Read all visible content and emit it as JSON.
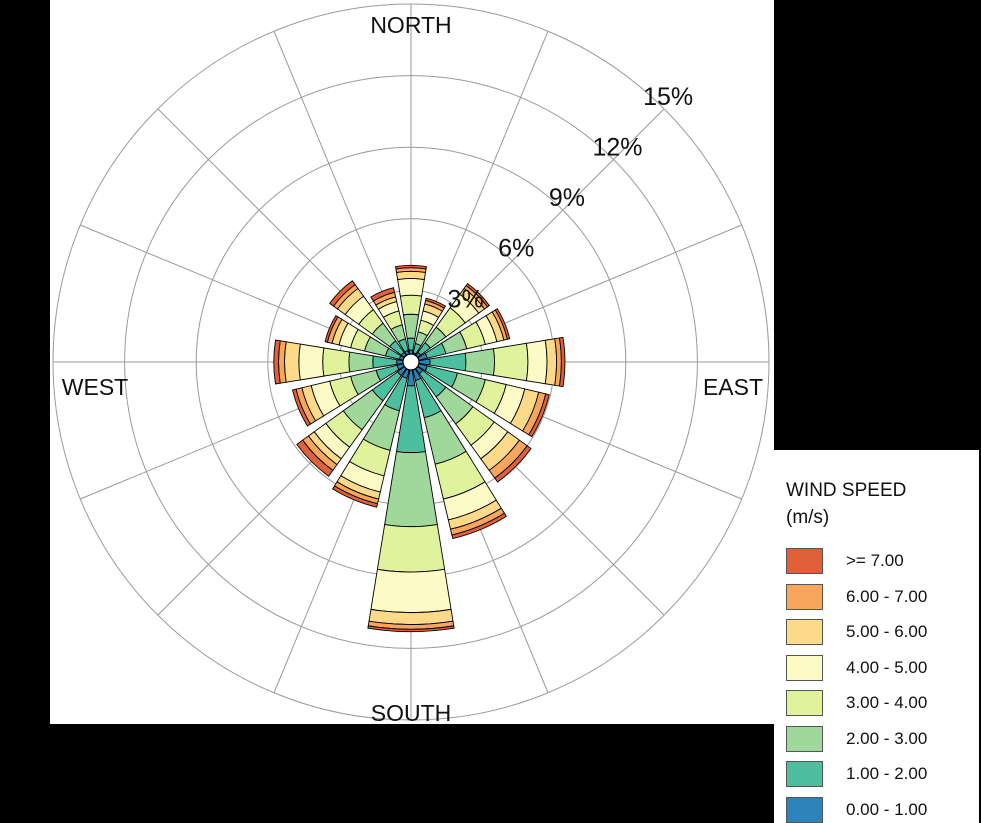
{
  "chart_data": {
    "type": "wind-rose",
    "directions": [
      "N",
      "NNE",
      "NE",
      "ENE",
      "E",
      "ESE",
      "SE",
      "SSE",
      "S",
      "SSW",
      "SW",
      "WSW",
      "W",
      "WNW",
      "NW",
      "NNW"
    ],
    "compass_labels": {
      "north": "NORTH",
      "east": "EAST",
      "south": "SOUTH",
      "west": "WEST"
    },
    "rings": [
      3,
      6,
      9,
      12,
      15
    ],
    "ring_labels": [
      "3%",
      "6%",
      "9%",
      "12%",
      "15%"
    ],
    "max_percent": 15,
    "legend": {
      "title_line1": "WIND SPEED",
      "title_line2": "(m/s)"
    },
    "speed_bins": [
      {
        "label": "0.00 - 1.00",
        "color": "#2b83ba"
      },
      {
        "label": "1.00 - 2.00",
        "color": "#4dbf9f"
      },
      {
        "label": "2.00 - 3.00",
        "color": "#9fd89a"
      },
      {
        "label": "3.00 - 4.00",
        "color": "#e1f29c"
      },
      {
        "label": "4.00 - 5.00",
        "color": "#fdfbc5"
      },
      {
        "label": "5.00 - 6.00",
        "color": "#fdd98a"
      },
      {
        "label": "6.00 - 7.00",
        "color": "#f8a65c"
      },
      {
        "label": ">= 7.00",
        "color": "#e0603a"
      }
    ],
    "cumulative_percent": [
      [
        0.5,
        1.0,
        2.0,
        2.8,
        3.5,
        3.8,
        3.95,
        4.05
      ],
      [
        0.4,
        0.8,
        1.3,
        1.8,
        2.2,
        2.5,
        2.65,
        2.75
      ],
      [
        0.5,
        1.0,
        1.8,
        2.8,
        3.5,
        3.8,
        3.95,
        4.05
      ],
      [
        0.7,
        1.5,
        2.4,
        3.2,
        3.7,
        4.0,
        4.15,
        4.25
      ],
      [
        0.8,
        2.3,
        3.5,
        4.9,
        5.7,
        6.1,
        6.3,
        6.45
      ],
      [
        0.7,
        2.0,
        3.2,
        4.1,
        4.9,
        5.5,
        5.8,
        5.95
      ],
      [
        0.6,
        1.8,
        3.2,
        4.3,
        5.0,
        5.6,
        6.0,
        6.2
      ],
      [
        0.8,
        2.4,
        4.4,
        5.9,
        6.8,
        7.2,
        7.45,
        7.6
      ],
      [
        1.0,
        3.8,
        6.9,
        8.8,
        10.5,
        11.0,
        11.2,
        11.3
      ],
      [
        0.7,
        2.1,
        3.8,
        4.9,
        5.6,
        5.9,
        6.1,
        6.25
      ],
      [
        0.7,
        2.0,
        3.5,
        4.4,
        5.0,
        5.3,
        5.6,
        5.9
      ],
      [
        0.6,
        1.5,
        2.6,
        3.5,
        4.3,
        4.7,
        4.95,
        5.1
      ],
      [
        0.6,
        1.6,
        2.6,
        3.7,
        4.7,
        5.3,
        5.55,
        5.75
      ],
      [
        0.5,
        1.1,
        2.0,
        2.6,
        3.1,
        3.4,
        3.6,
        3.7
      ],
      [
        0.5,
        1.1,
        2.0,
        2.7,
        3.4,
        3.8,
        4.0,
        4.2
      ],
      [
        0.5,
        1.0,
        1.6,
        2.2,
        2.6,
        2.8,
        3.0,
        3.2
      ]
    ]
  }
}
